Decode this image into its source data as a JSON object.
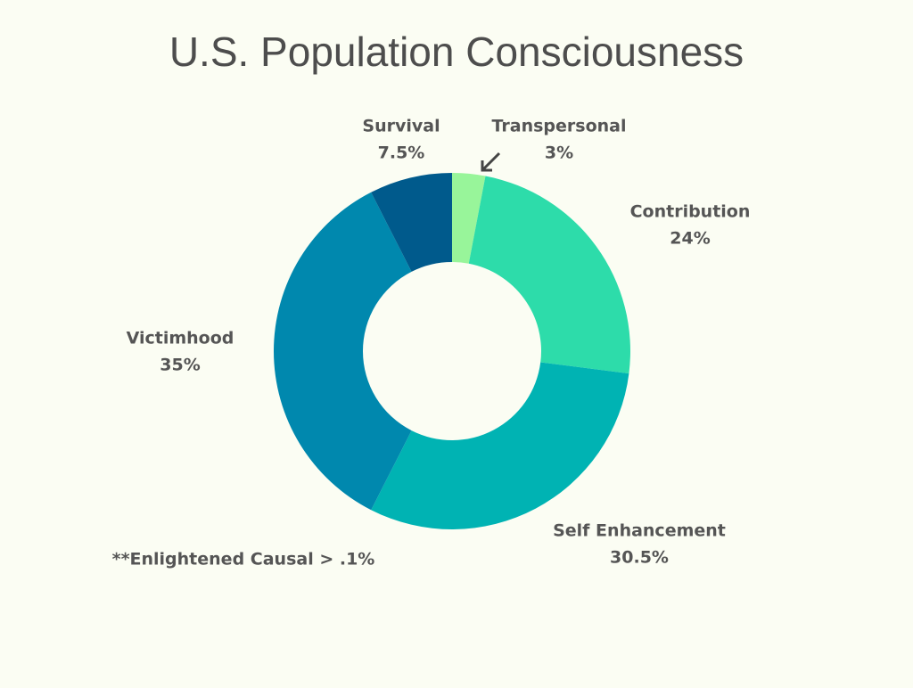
{
  "chart_data": {
    "type": "donut",
    "title": "U.S. Population Consciousness",
    "categories": [
      "Transpersonal",
      "Contribution",
      "Self Enhancement",
      "Victimhood",
      "Survival"
    ],
    "values": [
      3,
      24,
      30.5,
      35,
      7.5
    ],
    "value_labels": [
      "3%",
      "24%",
      "30.5%",
      "35%",
      "7.5%"
    ],
    "colors": [
      "#98f59a",
      "#2ddcaa",
      "#00b3b3",
      "#0088ae",
      "#005a8c"
    ],
    "annotation": "**Enlightened Causal > .1%"
  }
}
